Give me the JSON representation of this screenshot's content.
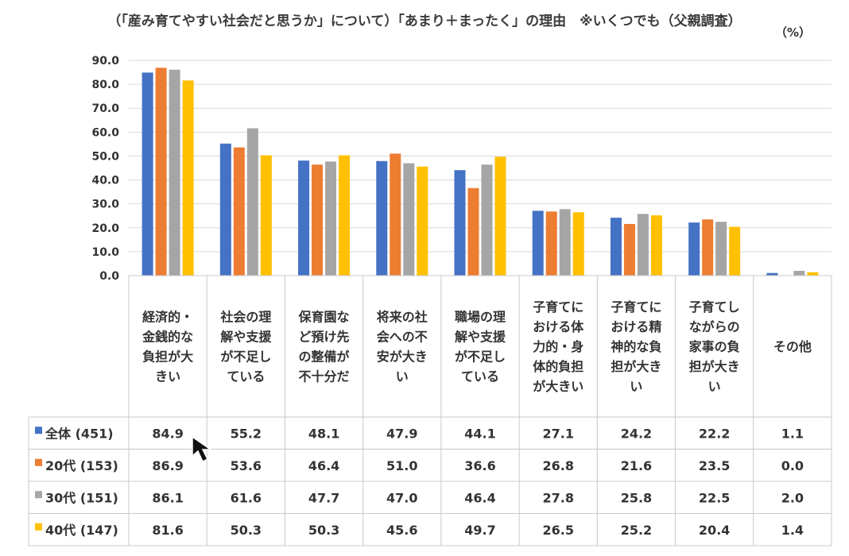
{
  "title": "（「産み育てやすい社会だと思うか」について）「あまり＋まったく」の理由　※いくつでも（父親調査）",
  "unit": "（%）",
  "chart_data": {
    "type": "bar",
    "ylim": [
      0,
      90
    ],
    "yticks": [
      "90.0",
      "80.0",
      "70.0",
      "60.0",
      "50.0",
      "40.0",
      "30.0",
      "20.0",
      "10.0",
      "0.0"
    ],
    "grid": true,
    "legend": "data-table",
    "categories": [
      [
        "経済的・",
        "金銭的な",
        "負担が大",
        "きい"
      ],
      [
        "社会の理",
        "解や支援",
        "が不足し",
        "ている"
      ],
      [
        "保育園な",
        "ど預け先",
        "の整備が",
        "不十分だ"
      ],
      [
        "将来の社",
        "会への不",
        "安が大き",
        "い"
      ],
      [
        "職場の理",
        "解や支援",
        "が不足し",
        "ている"
      ],
      [
        "子育てに",
        "おける体",
        "力的・身",
        "体的負担",
        "が大きい"
      ],
      [
        "子育てに",
        "おける精",
        "神的な負",
        "担が大き",
        "い"
      ],
      [
        "子育てし",
        "ながらの",
        "家事の負",
        "担が大き",
        "い"
      ],
      [
        "その他"
      ]
    ],
    "series": [
      {
        "name": "全体 (451)",
        "color": "#4472C4",
        "values": [
          84.9,
          55.2,
          48.1,
          47.9,
          44.1,
          27.1,
          24.2,
          22.2,
          1.1
        ]
      },
      {
        "name": "20代 (153)",
        "color": "#ED7D31",
        "values": [
          86.9,
          53.6,
          46.4,
          51.0,
          36.6,
          26.8,
          21.6,
          23.5,
          0.0
        ]
      },
      {
        "name": "30代 (151)",
        "color": "#A5A5A5",
        "values": [
          86.1,
          61.6,
          47.7,
          47.0,
          46.4,
          27.8,
          25.8,
          22.5,
          2.0
        ]
      },
      {
        "name": "40代 (147)",
        "color": "#FFC000",
        "values": [
          81.6,
          50.3,
          50.3,
          45.6,
          49.7,
          26.5,
          25.2,
          20.4,
          1.4
        ]
      }
    ]
  }
}
